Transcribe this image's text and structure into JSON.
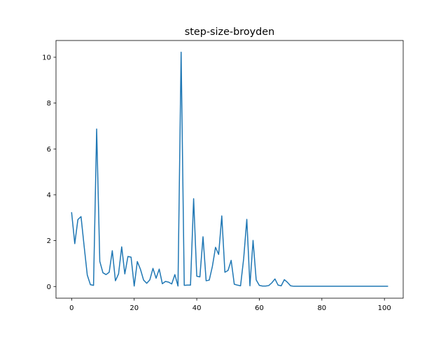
{
  "chart_data": {
    "type": "line",
    "title": "step-size-broyden",
    "xlabel": "",
    "ylabel": "",
    "xlim": [
      -5,
      106
    ],
    "ylim": [
      -0.51,
      10.73
    ],
    "xticks": [
      0,
      20,
      40,
      60,
      80,
      100
    ],
    "yticks": [
      0,
      2,
      4,
      6,
      8,
      10
    ],
    "grid": false,
    "legend": "none",
    "series": [
      {
        "color": "#1f77b4",
        "x": [
          0,
          1,
          2,
          3,
          4,
          5,
          6,
          7,
          8,
          9,
          10,
          11,
          12,
          13,
          14,
          15,
          16,
          17,
          18,
          19,
          20,
          21,
          22,
          23,
          24,
          25,
          26,
          27,
          28,
          29,
          30,
          31,
          32,
          33,
          34,
          35,
          36,
          37,
          38,
          39,
          40,
          41,
          42,
          43,
          44,
          45,
          46,
          47,
          48,
          49,
          50,
          51,
          52,
          53,
          54,
          55,
          56,
          57,
          58,
          59,
          60,
          61,
          62,
          63,
          64,
          65,
          66,
          67,
          68,
          69,
          70,
          71,
          72,
          73,
          74,
          75,
          76,
          77,
          78,
          79,
          80,
          81,
          82,
          83,
          84,
          85,
          86,
          87,
          88,
          89,
          90,
          91,
          92,
          93,
          94,
          95,
          96,
          97,
          98,
          99,
          100,
          101
        ],
        "y": [
          3.22,
          1.87,
          2.92,
          3.05,
          1.75,
          0.5,
          0.08,
          0.05,
          6.87,
          1.1,
          0.6,
          0.52,
          0.62,
          1.56,
          0.25,
          0.55,
          1.73,
          0.55,
          1.31,
          1.28,
          0.02,
          1.09,
          0.75,
          0.28,
          0.14,
          0.29,
          0.79,
          0.36,
          0.76,
          0.12,
          0.22,
          0.19,
          0.11,
          0.52,
          0.02,
          10.22,
          0.05,
          0.06,
          0.06,
          3.83,
          0.45,
          0.42,
          2.17,
          0.25,
          0.28,
          0.88,
          1.71,
          1.4,
          3.08,
          0.62,
          0.7,
          1.14,
          0.1,
          0.06,
          0.03,
          1.22,
          2.93,
          0.03,
          2.01,
          0.29,
          0.05,
          0.02,
          0.02,
          0.04,
          0.16,
          0.33,
          0.06,
          0.03,
          0.3,
          0.18,
          0.03,
          0.01,
          0.01,
          0.01,
          0.01,
          0.01,
          0.01,
          0.01,
          0.01,
          0.01,
          0.01,
          0.01,
          0.01,
          0.01,
          0.01,
          0.01,
          0.01,
          0.01,
          0.01,
          0.01,
          0.01,
          0.01,
          0.01,
          0.01,
          0.01,
          0.01,
          0.01,
          0.01,
          0.01,
          0.01,
          0.01,
          0.01
        ]
      }
    ]
  }
}
